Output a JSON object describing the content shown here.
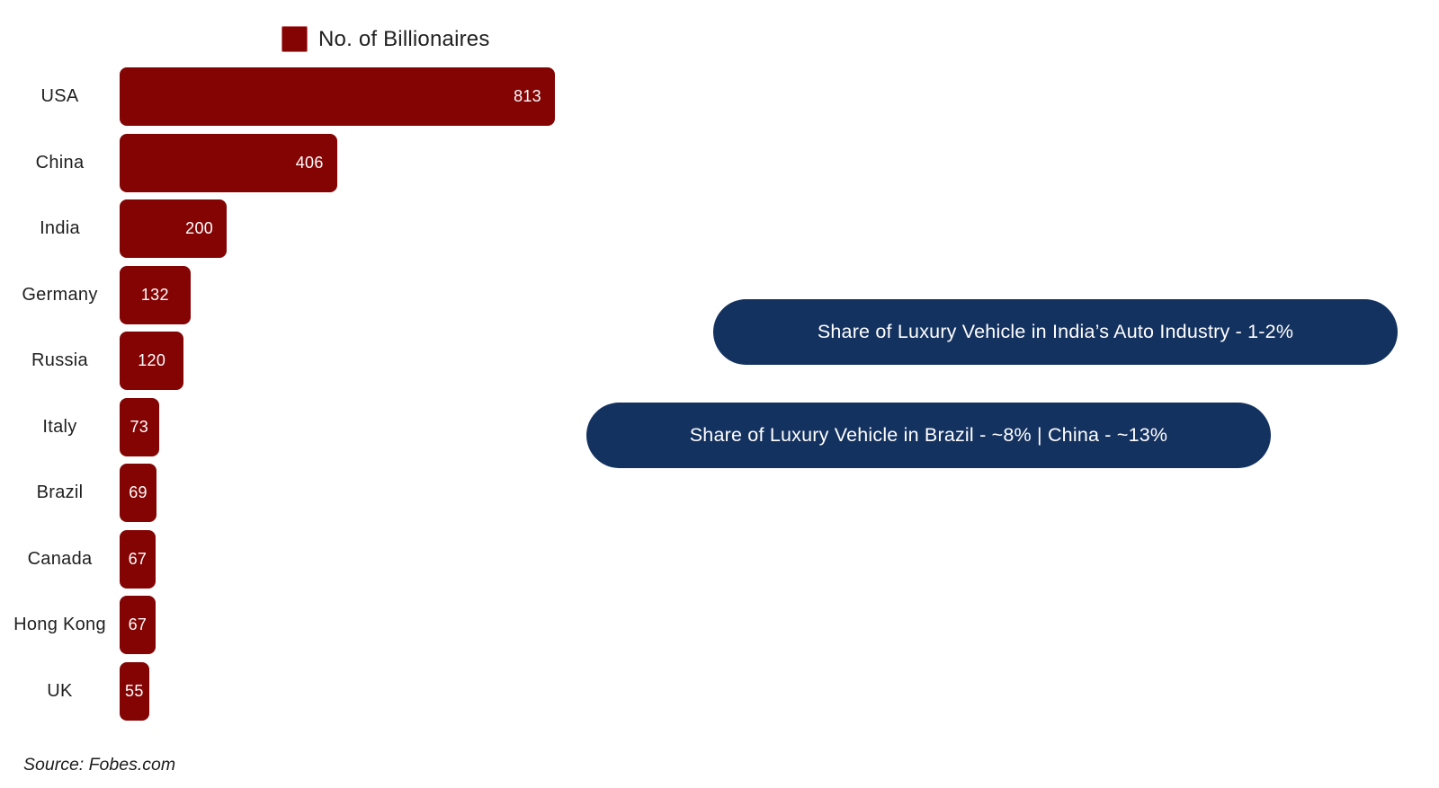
{
  "legend": {
    "label": "No. of Billionaires"
  },
  "chart_data": {
    "type": "bar",
    "orientation": "horizontal",
    "title": "",
    "legend_label": "No. of Billionaires",
    "categories": [
      "USA",
      "China",
      "India",
      "Germany",
      "Russia",
      "Italy",
      "Brazil",
      "Canada",
      "Hong Kong",
      "UK"
    ],
    "values": [
      813,
      406,
      200,
      132,
      120,
      73,
      69,
      67,
      67,
      55
    ],
    "xlabel": "",
    "ylabel": "",
    "xlim": [
      0,
      860
    ],
    "grid": false,
    "legend_position": "top",
    "bar_color": "#840404",
    "value_label_color": "#ffffff"
  },
  "annotations": [
    {
      "text": "Share of Luxury Vehicle in India’s Auto Industry - 1-2%"
    },
    {
      "text": "Share of Luxury Vehicle in Brazil - ~8% | China - ~13%"
    }
  ],
  "source": "Source: Fobes.com",
  "colors": {
    "bar": "#840404",
    "pill": "#143260",
    "text": "#1f1f1f"
  }
}
